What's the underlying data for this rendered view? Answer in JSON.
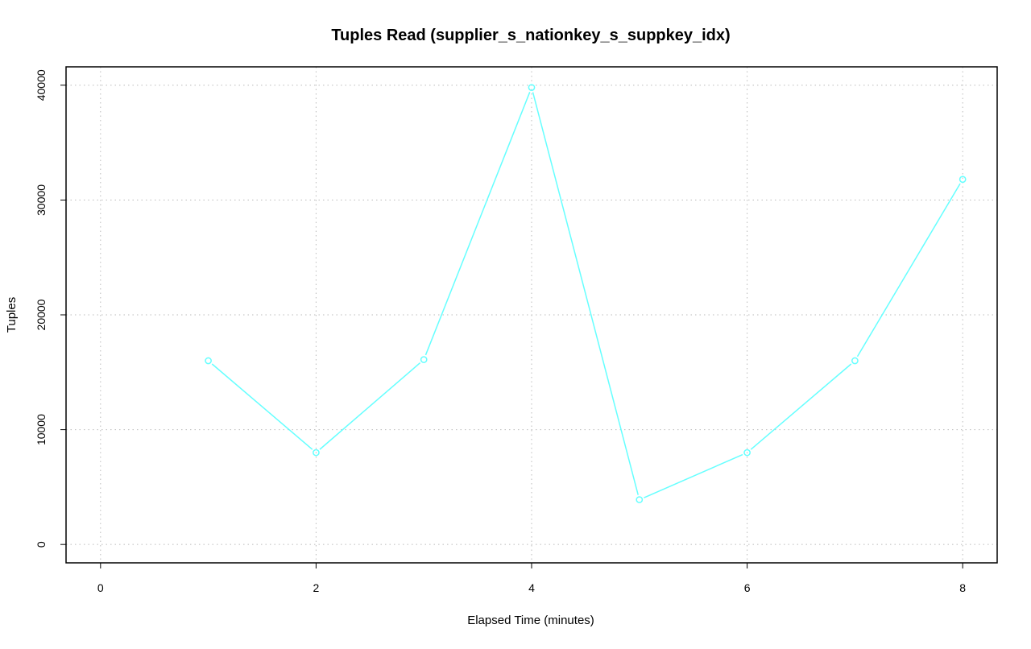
{
  "chart_data": {
    "type": "line",
    "title": "Tuples Read (supplier_s_nationkey_s_suppkey_idx)",
    "xlabel": "Elapsed Time (minutes)",
    "ylabel": "Tuples",
    "xlim": [
      -0.32,
      8.32
    ],
    "ylim": [
      -1600,
      41600
    ],
    "x_ticks": [
      0,
      2,
      4,
      6,
      8
    ],
    "x_tick_labels": [
      "0",
      "2",
      "4",
      "6",
      "8"
    ],
    "y_ticks": [
      0,
      10000,
      20000,
      30000,
      40000
    ],
    "y_tick_labels": [
      "0",
      "10000",
      "20000",
      "30000",
      "40000"
    ],
    "grid": true,
    "grid_style": "dotted",
    "marker": "open-circle",
    "series": [
      {
        "color": "#66ffff",
        "x": [
          1,
          2,
          3,
          4,
          5,
          6,
          7,
          8
        ],
        "y": [
          16000,
          8000,
          16100,
          39800,
          3900,
          8000,
          16000,
          31800
        ]
      }
    ]
  }
}
